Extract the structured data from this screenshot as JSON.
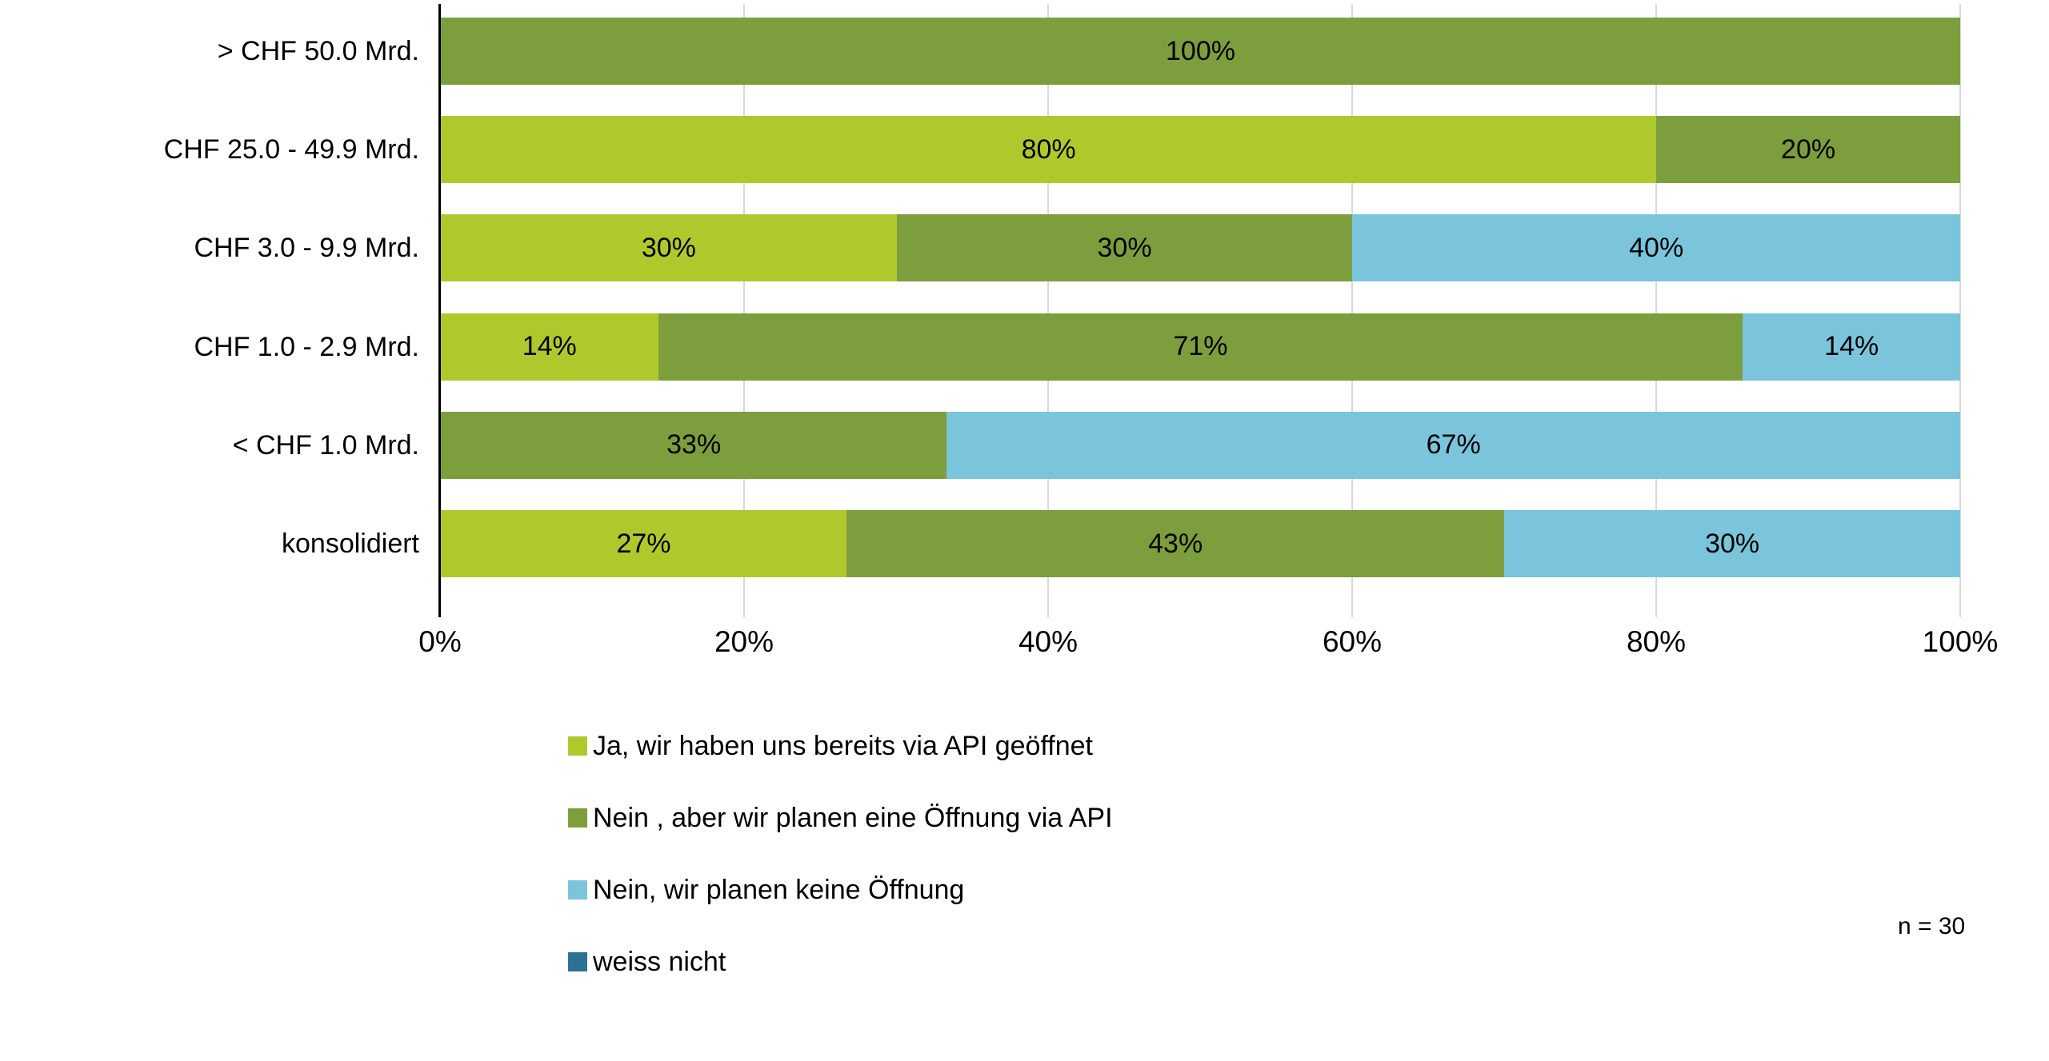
{
  "chart_data": {
    "type": "bar",
    "orientation": "horizontal",
    "stacked": true,
    "title": "",
    "xlabel": "",
    "ylabel": "",
    "xlim": [
      0,
      100
    ],
    "grid": "vertical",
    "legend_position": "bottom-left",
    "x_ticks": [
      "0%",
      "20%",
      "40%",
      "60%",
      "80%",
      "100%"
    ],
    "x_tick_values": [
      0,
      20,
      40,
      60,
      80,
      100
    ],
    "categories": [
      "> CHF 50.0 Mrd.",
      "CHF 25.0 - 49.9 Mrd.",
      "CHF 3.0 - 9.9 Mrd.",
      "CHF 1.0 - 2.9 Mrd.",
      "< CHF 1.0 Mrd.",
      "konsolidiert"
    ],
    "series": [
      {
        "name": "Ja, wir haben uns bereits via API geöffnet",
        "color": "#AFC92D",
        "values": [
          0,
          80,
          30,
          14.3,
          0,
          26.7
        ],
        "labels": [
          "",
          "80%",
          "30%",
          "14%",
          "",
          "27%"
        ]
      },
      {
        "name": "Nein , aber wir planen eine Öffnung via API",
        "color": "#7C9E3D",
        "values": [
          100,
          20,
          30,
          71.4,
          33.3,
          43.3
        ],
        "labels": [
          "100%",
          "20%",
          "30%",
          "71%",
          "33%",
          "43%"
        ]
      },
      {
        "name": "Nein, wir planen keine Öffnung",
        "color": "#7AC5DB",
        "values": [
          0,
          0,
          40,
          14.3,
          66.7,
          30
        ],
        "labels": [
          "",
          "",
          "40%",
          "14%",
          "67%",
          "30%"
        ]
      },
      {
        "name": "weiss nicht",
        "color": "#2C7294",
        "values": [
          0,
          0,
          0,
          0,
          0,
          0
        ],
        "labels": [
          "",
          "",
          "",
          "",
          "",
          ""
        ]
      }
    ],
    "note": "n = 30"
  }
}
